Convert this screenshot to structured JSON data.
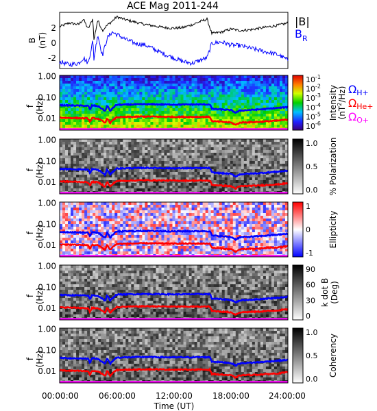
{
  "figure": {
    "title": "ACE Mag 2011-244",
    "xlabel": "Time (UT)",
    "x_ticks": [
      "00:00:00",
      "06:00:00",
      "12:00:00",
      "18:00:00",
      "24:00:00"
    ]
  },
  "chart_data": [
    {
      "type": "line",
      "panel": "B",
      "ylabel": "B (nT)",
      "yticks": [
        "2",
        "0",
        "-2"
      ],
      "ylim": [
        -3.2,
        4.2
      ],
      "xlim_hours": [
        0,
        24
      ],
      "legend": [
        {
          "name": "|B|",
          "color": "#000000"
        },
        {
          "name": "B_R",
          "color": "#0000ff"
        }
      ],
      "series": [
        {
          "name": "|B|",
          "color": "#000000",
          "x": [
            0,
            1,
            2,
            2.5,
            3,
            3.5,
            3.6,
            4,
            4.5,
            5,
            5.5,
            6,
            7,
            8,
            9,
            10,
            11,
            12,
            13,
            14,
            15,
            15.5,
            16,
            17,
            18,
            19,
            20,
            21,
            22,
            23,
            24
          ],
          "y": [
            2.3,
            2.8,
            2.6,
            3.3,
            2.0,
            3.4,
            0.5,
            3.2,
            1.8,
            2.5,
            3.0,
            3.6,
            3.2,
            2.9,
            2.6,
            2.4,
            2.2,
            2.1,
            2.2,
            2.6,
            3.1,
            3.3,
            1.4,
            1.6,
            2.0,
            1.8,
            1.9,
            2.1,
            2.3,
            2.5,
            2.8
          ]
        },
        {
          "name": "B_R",
          "color": "#0000ff",
          "x": [
            0,
            1,
            2,
            2.5,
            3,
            3.5,
            3.6,
            4,
            4.5,
            5,
            5.5,
            6,
            7,
            8,
            9,
            10,
            11,
            12,
            13,
            14,
            15,
            15.5,
            16,
            17,
            18,
            19,
            20,
            21,
            22,
            23,
            24
          ],
          "y": [
            -2.3,
            -2.7,
            -2.5,
            -1.8,
            -2.5,
            0.5,
            -2.0,
            1.3,
            -1.5,
            0.8,
            1.6,
            1.3,
            0.6,
            0.1,
            -0.1,
            -0.7,
            -1.3,
            -1.8,
            -2.3,
            -2.5,
            -2.0,
            -1.8,
            0.1,
            0.3,
            -0.1,
            -0.2,
            -0.5,
            -0.8,
            -1.1,
            -1.4,
            -2.1
          ]
        }
      ]
    },
    {
      "type": "heatmap",
      "panel": "Intensity",
      "ylabel": "f (Hz)",
      "yticks": [
        "1.00",
        "0.10",
        "0.01"
      ],
      "colorbar": {
        "label": "Intensity (nT^2/Hz)",
        "ticks": [
          "10^-1",
          "10^-2",
          "10^-3",
          "10^-4",
          "10^-5",
          "10^-6"
        ],
        "scale": "rainbow"
      },
      "overlays": [
        "Ω_H+",
        "Ω_He+",
        "Ω_O+"
      ]
    },
    {
      "type": "heatmap",
      "panel": "Polarization",
      "ylabel": "f (Hz)",
      "yticks": [
        "1.00",
        "0.10",
        "0.01"
      ],
      "colorbar": {
        "label": "% Polarization",
        "ticks": [
          "1.0",
          "0.5",
          "0.0"
        ],
        "scale": "gray"
      }
    },
    {
      "type": "heatmap",
      "panel": "Ellipticity",
      "ylabel": "f (Hz)",
      "yticks": [
        "1.00",
        "0.10",
        "0.01"
      ],
      "colorbar": {
        "label": "Ellipticity",
        "ticks": [
          "1",
          "0",
          "-1"
        ],
        "scale": "bluewhitered"
      }
    },
    {
      "type": "heatmap",
      "panel": "kdotB",
      "ylabel": "f (Hz)",
      "yticks": [
        "1.00",
        "0.10",
        "0.01"
      ],
      "colorbar": {
        "label": "k dot B (Deg)",
        "ticks": [
          "90",
          "60",
          "30",
          "0"
        ],
        "scale": "gray"
      }
    },
    {
      "type": "heatmap",
      "panel": "Coherency",
      "ylabel": "f (Hz)",
      "yticks": [
        "1.00",
        "0.10",
        "0.01"
      ],
      "colorbar": {
        "label": "Coherency",
        "ticks": [
          "1.0",
          "0.5",
          "0.0"
        ],
        "scale": "gray"
      }
    }
  ],
  "gyro_lines": {
    "He+": {
      "color": "#0000ff",
      "x": [
        0,
        2,
        3,
        3.2,
        3.4,
        4,
        4.8,
        5,
        5.3,
        6,
        9,
        12,
        15,
        15.8,
        16,
        17,
        18,
        18.5,
        19,
        21,
        23,
        24
      ],
      "y": [
        0.043,
        0.041,
        0.04,
        0.025,
        0.042,
        0.039,
        0.022,
        0.041,
        0.022,
        0.045,
        0.048,
        0.046,
        0.047,
        0.047,
        0.029,
        0.027,
        0.025,
        0.019,
        0.024,
        0.027,
        0.032,
        0.035
      ]
    },
    "O+": {
      "color": "#ff0000",
      "x": [
        0,
        2,
        3,
        3.2,
        3.4,
        4,
        4.8,
        5,
        5.3,
        6,
        9,
        12,
        15,
        15.8,
        16,
        17,
        18,
        18.5,
        19,
        21,
        23,
        24
      ],
      "y": [
        0.011,
        0.0105,
        0.01,
        0.0065,
        0.0105,
        0.01,
        0.006,
        0.0105,
        0.006,
        0.0115,
        0.0125,
        0.012,
        0.012,
        0.012,
        0.0075,
        0.007,
        0.0065,
        0.005,
        0.0065,
        0.007,
        0.008,
        0.009
      ]
    },
    "floor": {
      "color": "#ff00ff"
    }
  },
  "labels": {
    "absB": "|B|",
    "BR": "B",
    "BR_sub": "R",
    "omega": "Ω",
    "H_sub": "H+",
    "He_sub": "He+",
    "O_sub": "O+",
    "B_unit_top": "B",
    "B_unit_bot": "(nT)",
    "f_top": "f",
    "f_bot": "(Hz)",
    "cb_intensity_top": "Intensity",
    "cb_intensity_bot": "(nT",
    "cb_intensity_sup": "2",
    "cb_intensity_end": "/Hz)",
    "cb_pol": "% Polarization",
    "cb_ell": "Ellipticity",
    "cb_kdb_top": "k dot B",
    "cb_kdb_bot": "(Deg)",
    "cb_coh": "Coherency"
  }
}
